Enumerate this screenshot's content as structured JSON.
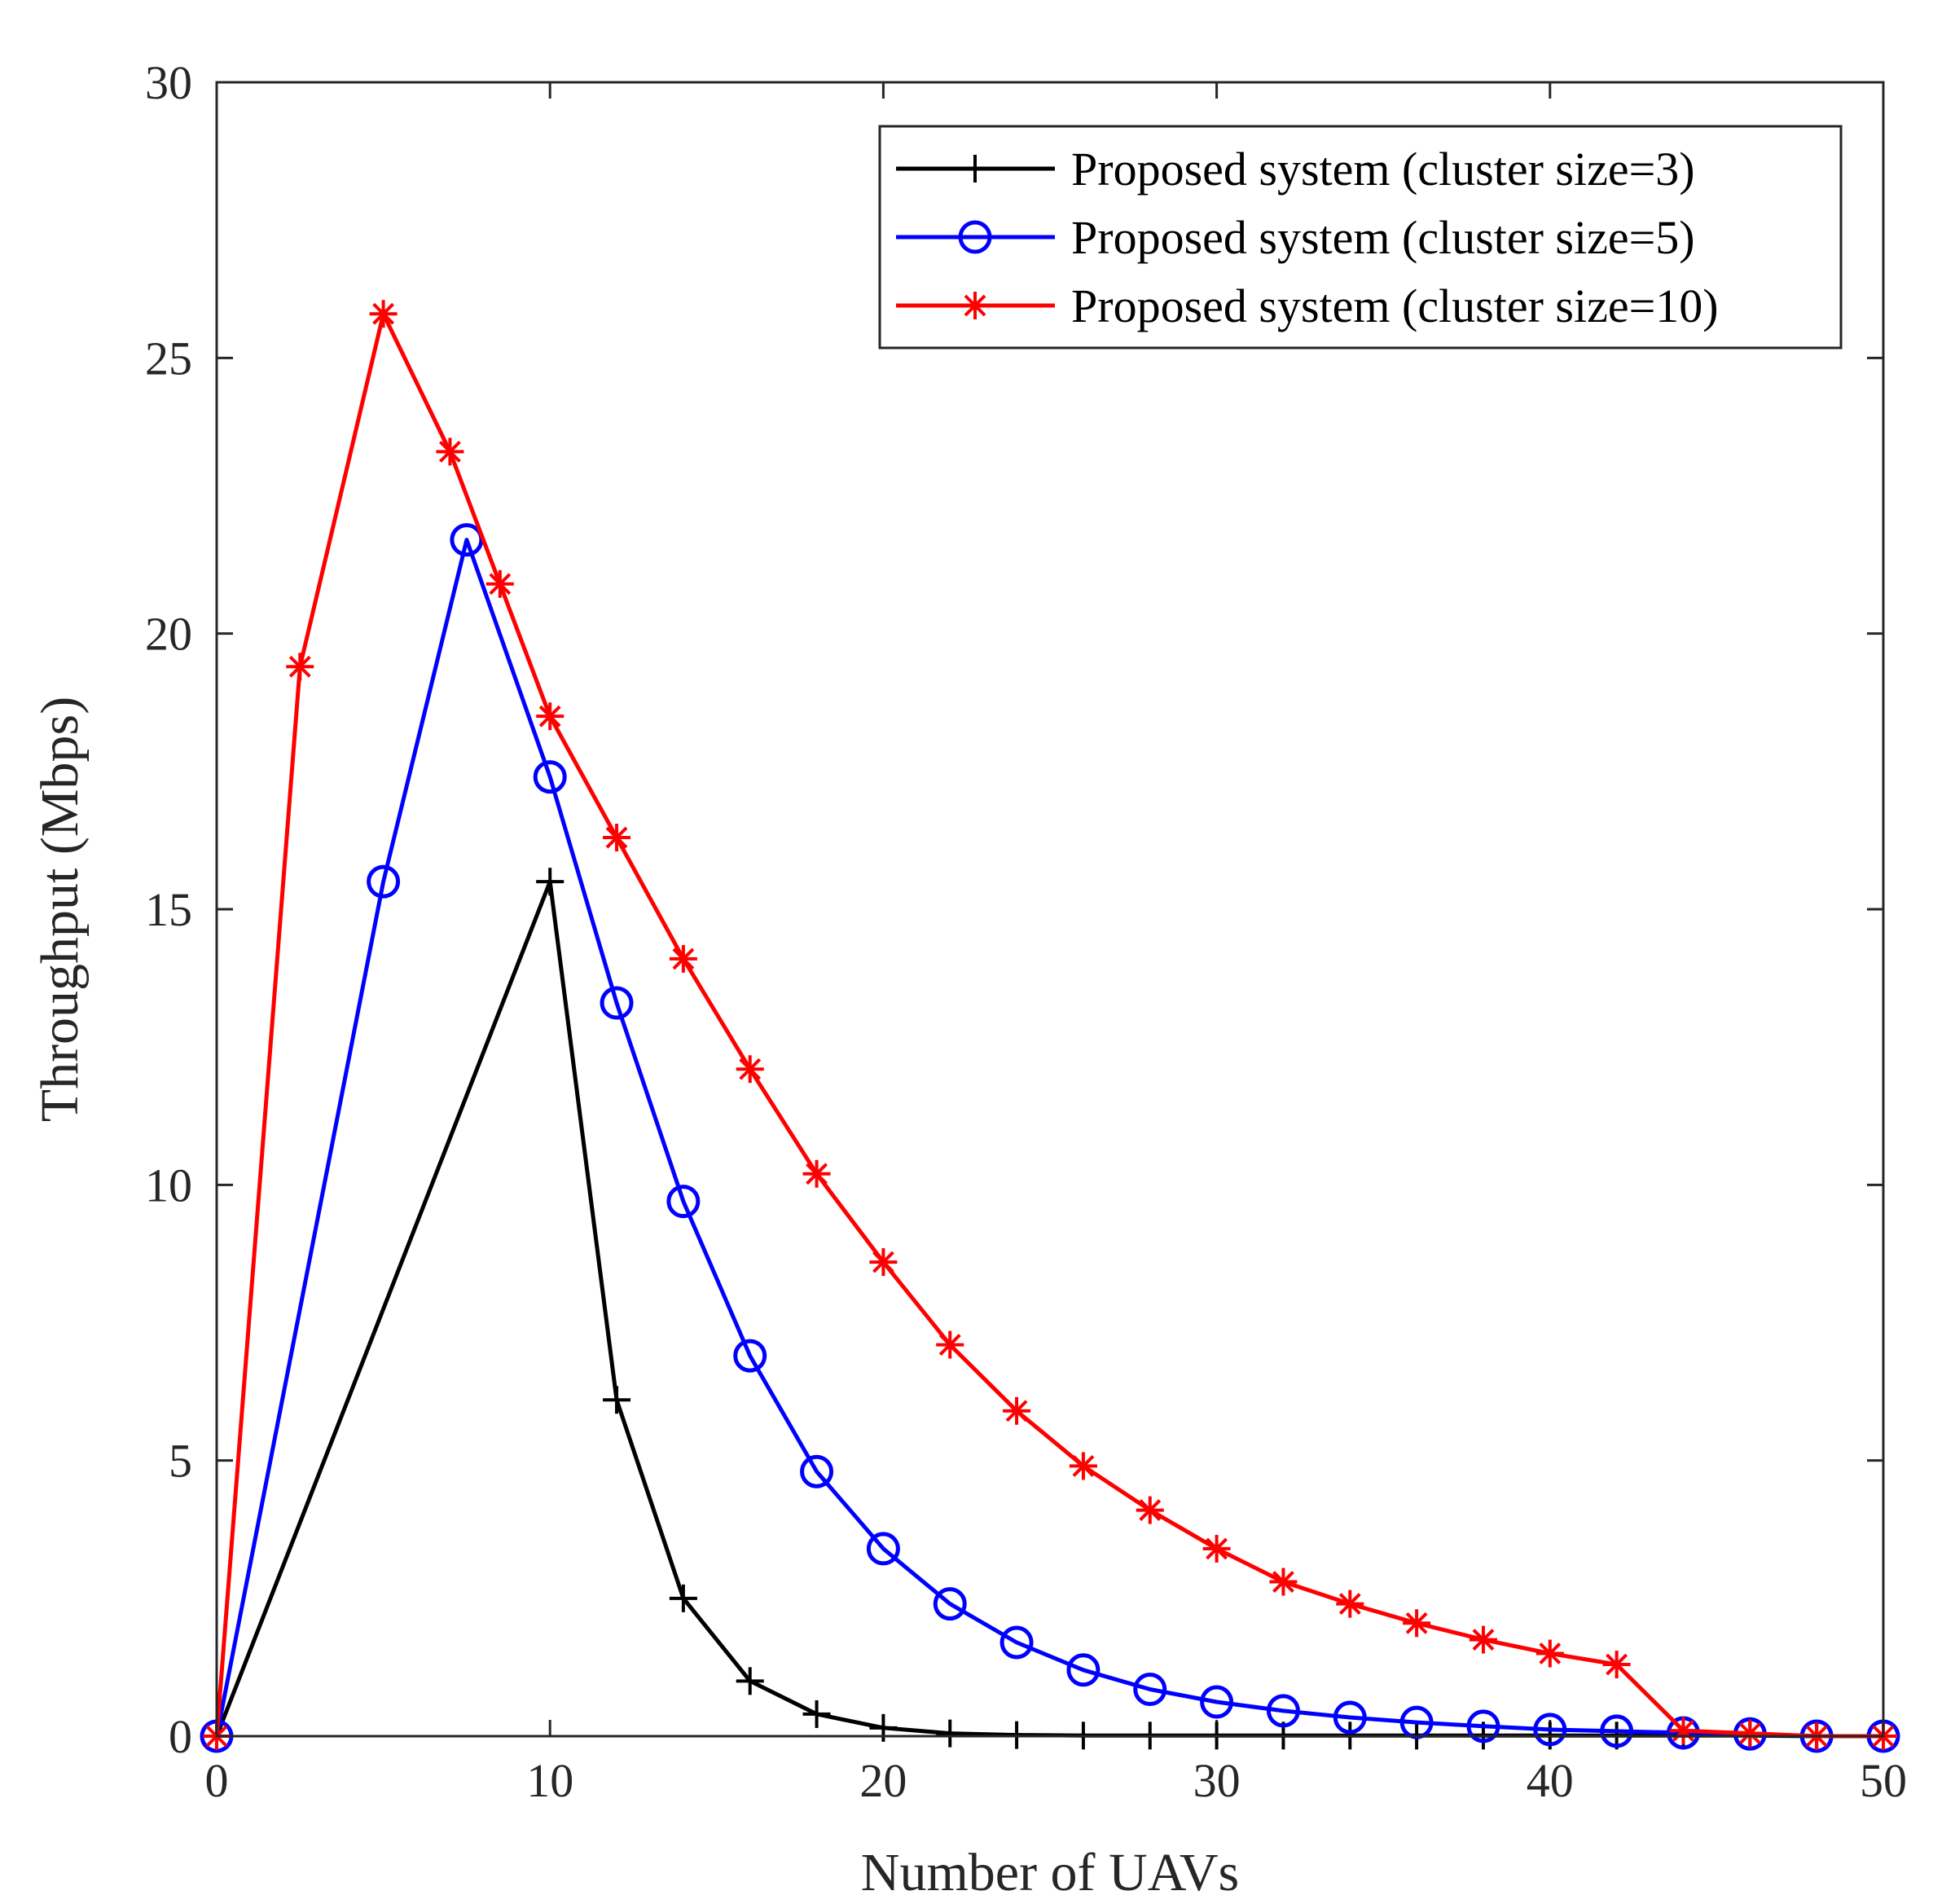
{
  "chart_data": {
    "type": "line",
    "title": "",
    "xlabel": "Number of UAVs",
    "ylabel": "Throughput (Mbps)",
    "xlim": [
      0,
      50
    ],
    "ylim": [
      0,
      30
    ],
    "xticks": [
      0,
      10,
      20,
      30,
      40,
      50
    ],
    "yticks": [
      0,
      5,
      10,
      15,
      20,
      25,
      30
    ],
    "grid": false,
    "legend_position": "top-right",
    "series": [
      {
        "name": "Proposed system (cluster size=3)",
        "color": "#000000",
        "marker": "plus",
        "x": [
          0,
          10,
          12,
          14,
          16,
          18,
          20,
          22,
          24,
          26,
          28,
          30,
          32,
          34,
          36,
          38,
          40,
          42,
          44,
          46,
          48,
          50
        ],
        "y": [
          0,
          15.5,
          6.1,
          2.5,
          1.0,
          0.4,
          0.15,
          0.05,
          0.02,
          0.01,
          0.01,
          0.01,
          0.01,
          0.01,
          0.01,
          0.01,
          0.01,
          0.01,
          0.01,
          0.01,
          0.0,
          0.0
        ]
      },
      {
        "name": "Proposed system (cluster size=5)",
        "color": "#0000ff",
        "marker": "circle",
        "x": [
          0,
          5,
          7.5,
          10,
          12,
          14,
          16,
          18,
          20,
          22,
          24,
          26,
          28,
          30,
          32,
          34,
          36,
          38,
          40,
          42,
          44,
          46,
          48,
          50
        ],
        "y": [
          0,
          15.5,
          21.7,
          17.4,
          13.3,
          9.7,
          6.9,
          4.8,
          3.4,
          2.4,
          1.7,
          1.2,
          0.85,
          0.62,
          0.46,
          0.34,
          0.25,
          0.18,
          0.12,
          0.09,
          0.06,
          0.04,
          0.0,
          0.0
        ]
      },
      {
        "name": "Proposed system (cluster size=10)",
        "color": "#ff0000",
        "marker": "asterisk",
        "x": [
          0,
          2.5,
          5,
          7,
          8.5,
          10,
          12,
          14,
          16,
          18,
          20,
          22,
          24,
          26,
          28,
          30,
          32,
          34,
          36,
          38,
          40,
          42,
          44,
          46,
          48,
          50
        ],
        "y": [
          0,
          19.4,
          25.8,
          23.3,
          20.9,
          18.5,
          16.3,
          14.1,
          12.1,
          10.2,
          8.6,
          7.1,
          5.9,
          4.9,
          4.1,
          3.4,
          2.8,
          2.4,
          2.05,
          1.75,
          1.5,
          1.3,
          0.1,
          0.05,
          0.0,
          0.0
        ]
      }
    ]
  }
}
